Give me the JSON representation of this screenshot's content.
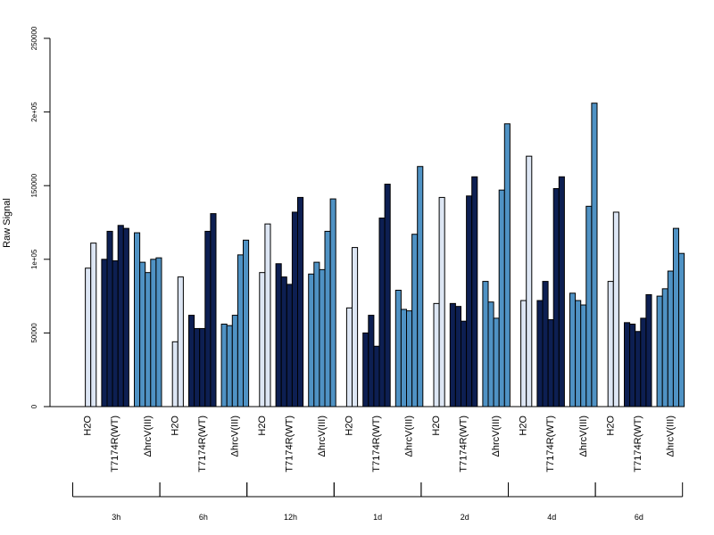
{
  "chart_data": {
    "type": "bar",
    "ylabel": "Raw Signal",
    "ylim": [
      0,
      250000
    ],
    "y_ticks": [
      {
        "value": 0,
        "label": "0"
      },
      {
        "value": 50000,
        "label": "50000"
      },
      {
        "value": 100000,
        "label": "1e+05"
      },
      {
        "value": 150000,
        "label": "150000"
      },
      {
        "value": 200000,
        "label": "2e+05"
      },
      {
        "value": 250000,
        "label": "250000"
      }
    ],
    "group_labels": [
      "H2O",
      "T7174R(WT)",
      "ΔhrcV(III)"
    ],
    "colors": [
      "#dde6f4",
      "#0d1f52",
      "#4f92c4"
    ],
    "timepoints": [
      {
        "label": "3h",
        "groups": [
          [
            0,
            94000,
            111000
          ],
          [
            100000,
            119000,
            99000,
            123000,
            121000
          ],
          [
            118000,
            98000,
            91000,
            100000,
            101000
          ]
        ]
      },
      {
        "label": "6h",
        "groups": [
          [
            0,
            44000,
            88000
          ],
          [
            62000,
            53000,
            53000,
            119000,
            131000
          ],
          [
            56000,
            55000,
            62000,
            103000,
            113000
          ]
        ]
      },
      {
        "label": "12h",
        "groups": [
          [
            0,
            91000,
            124000
          ],
          [
            97000,
            88000,
            83000,
            132000,
            142000
          ],
          [
            90000,
            98000,
            93000,
            119000,
            141000
          ]
        ]
      },
      {
        "label": "1d",
        "groups": [
          [
            0,
            67000,
            108000
          ],
          [
            50000,
            62000,
            41000,
            128000,
            151000
          ],
          [
            79000,
            66000,
            65000,
            117000,
            163000
          ]
        ]
      },
      {
        "label": "2d",
        "groups": [
          [
            0,
            70000,
            142000
          ],
          [
            70000,
            68000,
            58000,
            143000,
            156000
          ],
          [
            85000,
            71000,
            60000,
            147000,
            192000
          ]
        ]
      },
      {
        "label": "4d",
        "groups": [
          [
            0,
            72000,
            170000
          ],
          [
            72000,
            85000,
            59000,
            148000,
            156000
          ],
          [
            77000,
            72000,
            69000,
            136000,
            206000
          ]
        ]
      },
      {
        "label": "6d",
        "groups": [
          [
            0,
            85000,
            132000
          ],
          [
            57000,
            56000,
            51000,
            60000,
            76000
          ],
          [
            75000,
            80000,
            92000,
            121000,
            104000
          ]
        ]
      }
    ]
  }
}
